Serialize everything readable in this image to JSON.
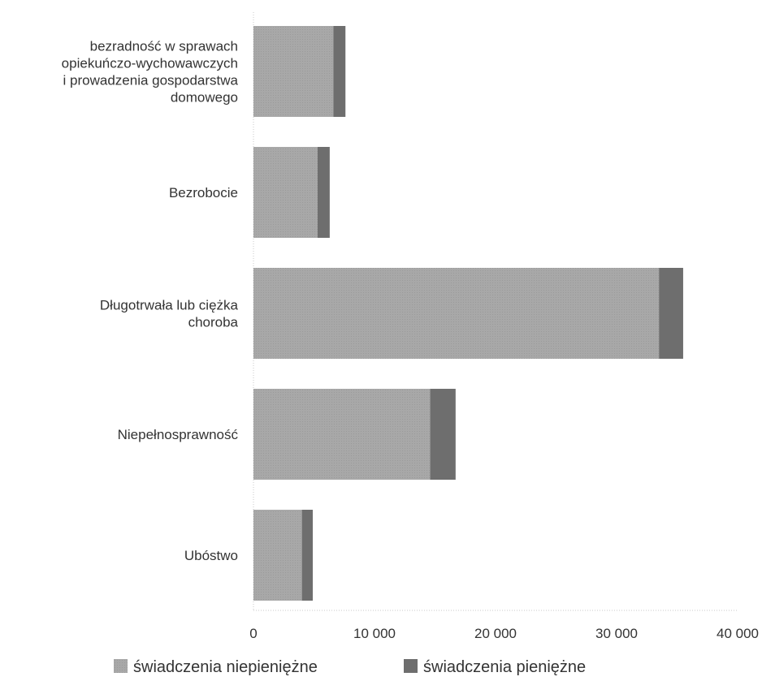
{
  "chart_data": {
    "type": "bar",
    "orientation": "horizontal",
    "stacked": true,
    "categories": [
      [
        "bezradność w sprawach",
        "opiekuńczo-wychowawczych",
        "i prowadzenia gospodarstwa",
        "domowego"
      ],
      [
        "Bezrobocie"
      ],
      [
        "Długotrwała lub ciężka",
        "choroba"
      ],
      [
        "Niepełnosprawność"
      ],
      [
        "Ubóstwo"
      ]
    ],
    "series": [
      {
        "name": "świadczenia niepieniężne",
        "color": "#a3a3a3",
        "values": [
          6600,
          5300,
          33500,
          14600,
          4000
        ]
      },
      {
        "name": "świadczenia pieniężne",
        "color": "#6e6e6e",
        "values": [
          1000,
          1000,
          2000,
          2100,
          900
        ]
      }
    ],
    "x_ticks": [
      "0",
      "10 000",
      "20 000",
      "30 000",
      "40 000"
    ],
    "xlim": [
      0,
      40000
    ],
    "grid": false,
    "legend_position": "bottom"
  }
}
